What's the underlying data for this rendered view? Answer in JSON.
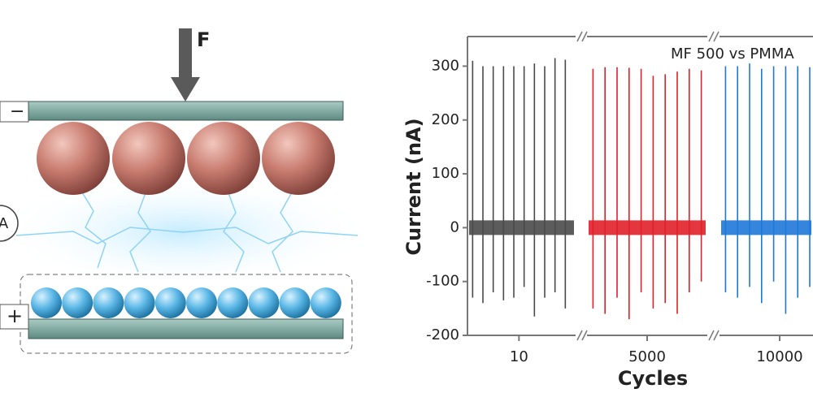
{
  "schematic": {
    "force_label": "F",
    "top_sign": "−",
    "bottom_sign": "+",
    "meter": "A"
  },
  "chart_data": {
    "type": "line",
    "annotation": "MF 500 vs PMMA",
    "x_label": "Cycles",
    "y_label": "Current (nA)",
    "ylim": [
      -200,
      355
    ],
    "yticks": [
      -200,
      -100,
      0,
      100,
      200,
      300
    ],
    "xticks": [
      10,
      5000,
      10000
    ],
    "series": [
      {
        "color": "#4a4a4a",
        "xlim": [
          0,
          21
        ],
        "x": [
          1,
          3,
          5,
          7,
          9,
          11,
          13,
          15,
          17,
          19
        ],
        "values": [
          310,
          300,
          300,
          300,
          300,
          300,
          305,
          300,
          315,
          312
        ],
        "troughs": [
          -130,
          -140,
          -120,
          -135,
          -130,
          -110,
          -165,
          -130,
          -120,
          -150
        ]
      },
      {
        "color": "#e0202a",
        "xlim": [
          4990,
          5010
        ],
        "x": [
          4991,
          4993,
          4995,
          4997,
          4999,
          5001,
          5003,
          5005,
          5007,
          5009
        ],
        "values": [
          295,
          298,
          298,
          297,
          295,
          282,
          285,
          290,
          295,
          292
        ],
        "troughs": [
          -150,
          -160,
          -130,
          -170,
          -120,
          -150,
          -140,
          -160,
          -120,
          -100
        ]
      },
      {
        "color": "#1f78d8",
        "xlim": [
          9990,
          10010
        ],
        "x": [
          9991,
          9993,
          9995,
          9997,
          9999,
          10001,
          10003,
          10005
        ],
        "values": [
          300,
          300,
          305,
          295,
          300,
          300,
          300,
          298
        ],
        "troughs": [
          -120,
          -130,
          -110,
          -140,
          -100,
          -160,
          -130,
          -110
        ]
      }
    ]
  }
}
